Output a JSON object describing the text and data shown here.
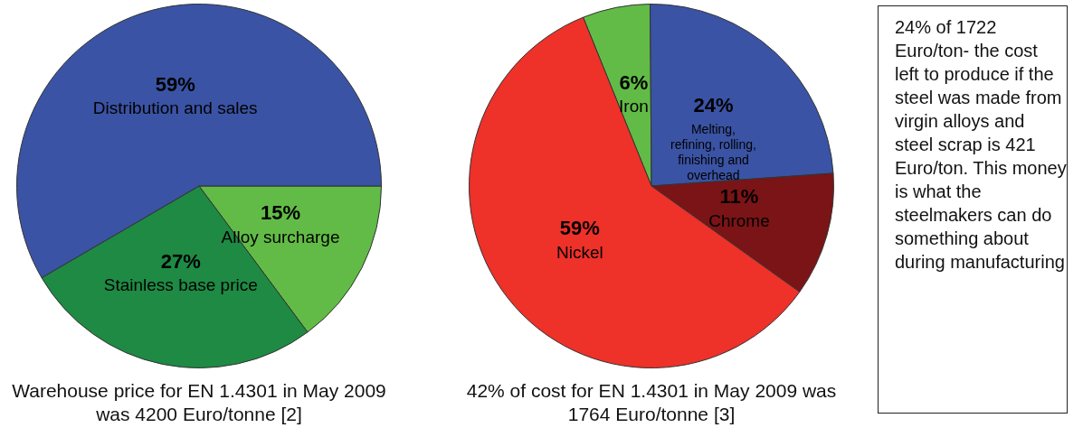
{
  "chart_data": [
    {
      "type": "pie",
      "title": "Warehouse price for EN 1.4301 in May 2009 was 4200 Euro/tonne [2]",
      "categories": [
        "Alloy surcharge",
        "Stainless base price",
        "Distribution and sales"
      ],
      "values": [
        15,
        27,
        59
      ],
      "value_labels": [
        "15%",
        "27%",
        "59%"
      ],
      "colors": [
        "#62bb46",
        "#1e8a44",
        "#3a53a4"
      ],
      "legend": false
    },
    {
      "type": "pie",
      "title": "42% of cost for EN 1.4301 in May 2009 was 1764 Euro/tonne [3]",
      "categories": [
        "Iron",
        "Melting, refining, rolling, finishing and overhead",
        "Chrome",
        "Nickel"
      ],
      "values": [
        6,
        24,
        11,
        59
      ],
      "value_labels": [
        "6%",
        "24%",
        "11%",
        "59%"
      ],
      "colors": [
        "#62bb46",
        "#3a53a4",
        "#7b1416",
        "#ee3129"
      ],
      "legend": false
    },
    {
      "type": "other",
      "annotations": [
        "24% of 1722 Euro/ton- the cost left to produce if the steel was made from virgin alloys and steel scrap is 421 Euro/ton. This money is what the steelmakers can do something about during manufacturing"
      ]
    }
  ]
}
